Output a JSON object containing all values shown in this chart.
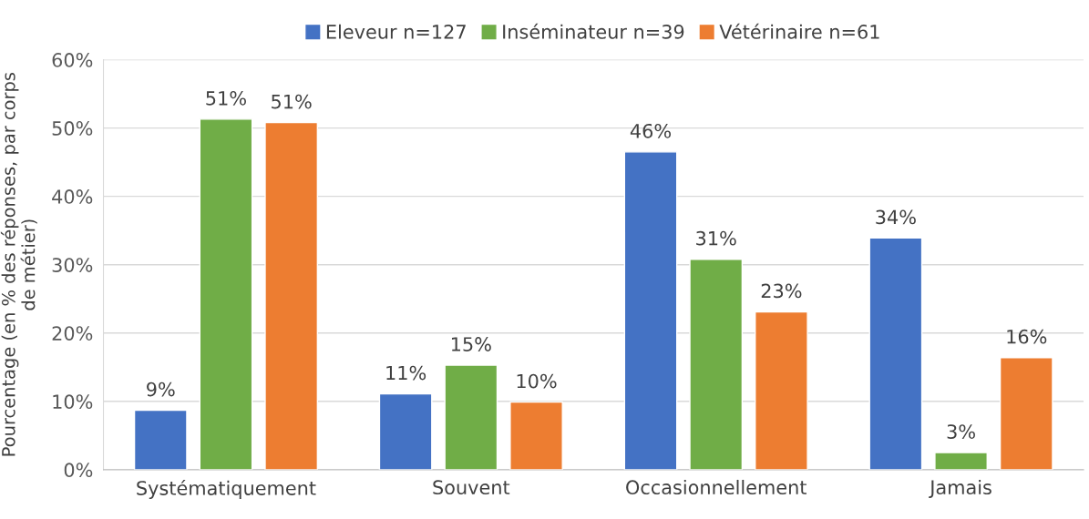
{
  "chart_data": {
    "type": "bar",
    "ylabel": "Pourcentage (en % des réponses, par corps\nde métier)",
    "categories": [
      "Systématiquement",
      "Souvent",
      "Occasionnellement",
      "Jamais"
    ],
    "series": [
      {
        "name": "Eleveur n=127",
        "color": "#4472c4",
        "values": [
          8.7,
          11.1,
          46.5,
          33.9
        ],
        "value_labels": [
          "9%",
          "11%",
          "46%",
          "34%"
        ]
      },
      {
        "name": "Inséminateur n=39",
        "color": "#70ad47",
        "values": [
          51.3,
          15.3,
          30.8,
          2.5
        ],
        "value_labels": [
          "51%",
          "15%",
          "31%",
          "3%"
        ]
      },
      {
        "name": "Vétérinaire n=61",
        "color": "#ed7d31",
        "values": [
          50.8,
          9.9,
          23.1,
          16.4
        ],
        "value_labels": [
          "51%",
          "10%",
          "23%",
          "16%"
        ]
      }
    ],
    "ylim": [
      0,
      60
    ],
    "yticks": [
      {
        "value": 0,
        "label": "0%"
      },
      {
        "value": 10,
        "label": "10%"
      },
      {
        "value": 20,
        "label": "20%"
      },
      {
        "value": 30,
        "label": "30%"
      },
      {
        "value": 40,
        "label": "40%"
      },
      {
        "value": 50,
        "label": "50%"
      },
      {
        "value": 60,
        "label": "60%"
      }
    ],
    "grid": "y",
    "legend": "top"
  }
}
